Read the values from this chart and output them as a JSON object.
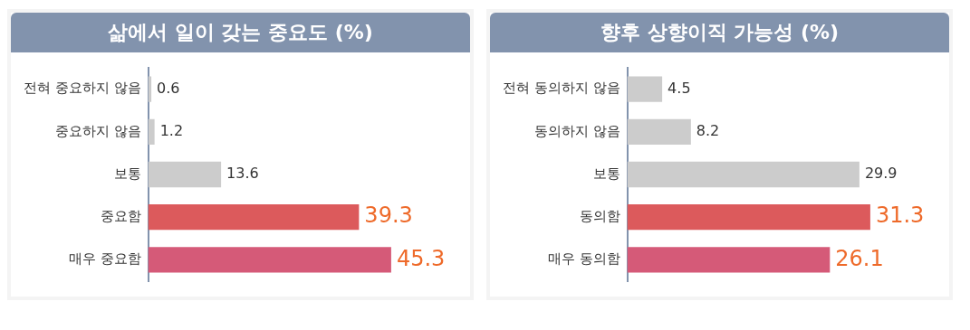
{
  "chart_data": [
    {
      "type": "bar",
      "orientation": "horizontal",
      "title": "삶에서 일이 갖는 중요도 (%)",
      "categories": [
        "전혀 중요하지 않음",
        "중요하지 않음",
        "보통",
        "중요함",
        "매우 중요함"
      ],
      "values": [
        0.6,
        1.2,
        13.6,
        39.3,
        45.3
      ],
      "colors": [
        "#cccccc",
        "#cccccc",
        "#cccccc",
        "#dc5a5c",
        "#d55a78"
      ],
      "data_labels": true,
      "legend": false,
      "tick_labels": "y"
    },
    {
      "type": "bar",
      "orientation": "horizontal",
      "title": "향후 상향이직 가능성 (%)",
      "categories": [
        "전혀 동의하지 않음",
        "동의하지 않음",
        "보통",
        "동의함",
        "매우 동의함"
      ],
      "values": [
        4.5,
        8.2,
        29.9,
        31.3,
        26.1
      ],
      "colors": [
        "#cccccc",
        "#cccccc",
        "#cccccc",
        "#dc5a5c",
        "#d55a78"
      ],
      "data_labels": true,
      "legend": false,
      "tick_labels": "y"
    }
  ]
}
